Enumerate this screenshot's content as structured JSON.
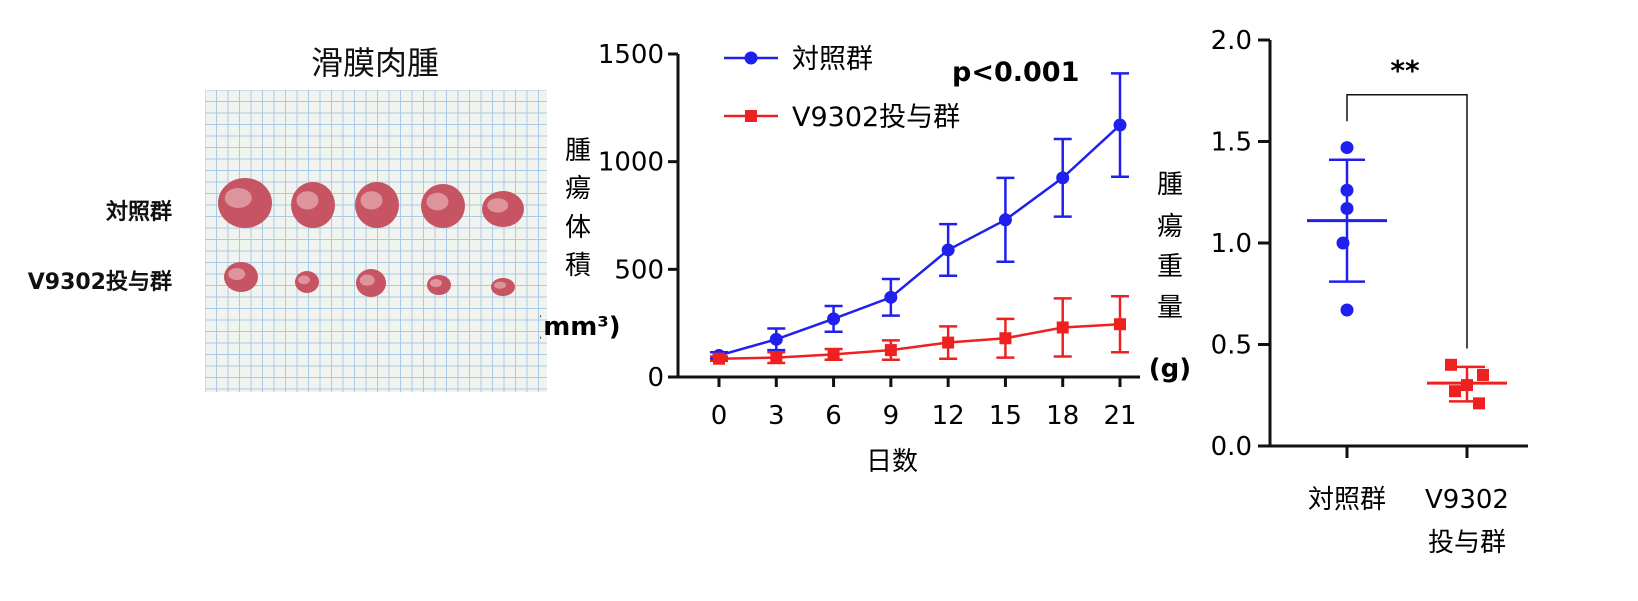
{
  "photo_panel": {
    "title": "滑膜肉腫",
    "row_labels": [
      "対照群",
      "V9302投与群"
    ],
    "grid_color": "#9ec3e6",
    "background_color": "#f1f3ee",
    "tumor_color": "#c65462",
    "tumor_highlight": "#f0c8cc",
    "tumor_counts": [
      5,
      5
    ]
  },
  "chart_data": [
    {
      "type": "line",
      "title": "",
      "annotation": "p<0.001",
      "xlabel": "日数",
      "ylabel_lines": [
        "腫",
        "瘍",
        "体",
        "積",
        "(mm³)"
      ],
      "x": [
        0,
        3,
        6,
        9,
        12,
        15,
        18,
        21
      ],
      "xticks": [
        "0",
        "3",
        "6",
        "9",
        "12",
        "15",
        "18",
        "21"
      ],
      "yticks": [
        "0",
        "500",
        "1000",
        "1500"
      ],
      "ytick_values": [
        0,
        500,
        1000,
        1500
      ],
      "ylim": [
        0,
        1500
      ],
      "legend_position": "top-left",
      "series": [
        {
          "name": "対照群",
          "color": "#2020ee",
          "marker": "circle",
          "values": [
            100,
            175,
            270,
            370,
            590,
            730,
            925,
            1170
          ],
          "errors": [
            15,
            50,
            60,
            85,
            120,
            195,
            180,
            240
          ]
        },
        {
          "name": "V9302投与群",
          "color": "#ee2020",
          "marker": "square",
          "values": [
            85,
            90,
            105,
            125,
            160,
            180,
            230,
            245
          ],
          "errors": [
            10,
            25,
            25,
            45,
            75,
            90,
            135,
            130
          ]
        }
      ]
    },
    {
      "type": "scatter",
      "title": "",
      "ylabel_lines": [
        "腫",
        "瘍",
        "重",
        "量",
        "(g)"
      ],
      "categories": [
        "対照群",
        "V9302 投与群"
      ],
      "category_label_lines": [
        [
          "対照群"
        ],
        [
          "V9302",
          "投与群"
        ]
      ],
      "yticks": [
        "0.0",
        "0.5",
        "1.0",
        "1.5",
        "2.0"
      ],
      "ytick_values": [
        0.0,
        0.5,
        1.0,
        1.5,
        2.0
      ],
      "ylim": [
        0,
        2.0
      ],
      "significance": "**",
      "groups": [
        {
          "name": "対照群",
          "color": "#2020ee",
          "marker": "circle",
          "points": [
            1.47,
            1.26,
            1.17,
            1.0,
            0.67
          ],
          "mean": 1.11,
          "sd_low": 0.81,
          "sd_high": 1.41
        },
        {
          "name": "V9302投与群",
          "color": "#ee2020",
          "marker": "square",
          "points": [
            0.4,
            0.35,
            0.3,
            0.27,
            0.21
          ],
          "mean": 0.31,
          "sd_low": 0.22,
          "sd_high": 0.39
        }
      ]
    }
  ]
}
